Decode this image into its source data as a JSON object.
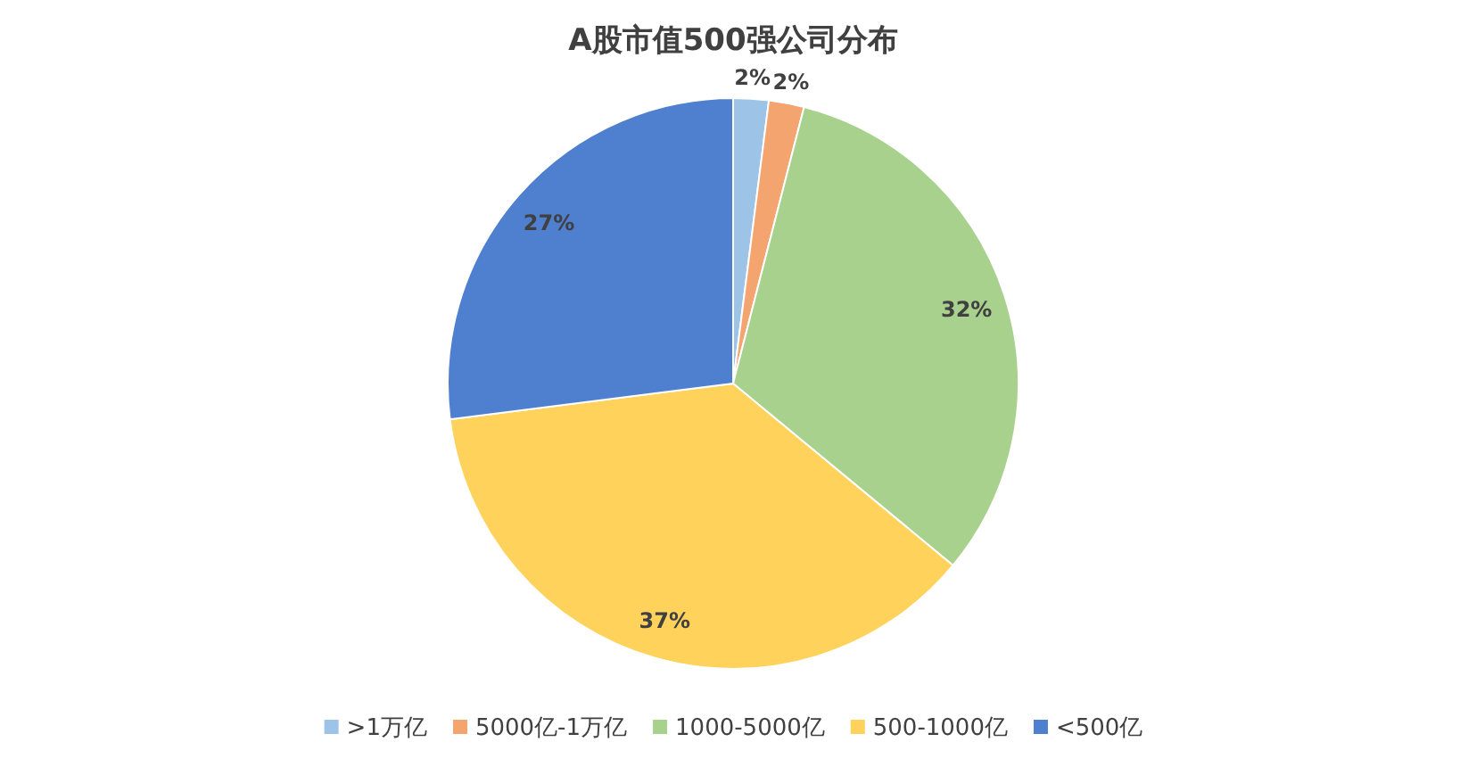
{
  "chart_data": {
    "type": "pie",
    "title": "A股市值500强公司分布",
    "categories": [
      ">1万亿",
      "5000亿-1万亿",
      "1000-5000亿",
      "500-1000亿",
      "<500亿"
    ],
    "values": [
      2,
      2,
      32,
      37,
      27
    ],
    "value_labels": [
      "2%",
      "2%",
      "32%",
      "37%",
      "27%"
    ],
    "colors": [
      "#9dc3e6",
      "#f4a46e",
      "#a9d18e",
      "#ffd25c",
      "#4f7fcf"
    ],
    "legend": "bottom"
  }
}
